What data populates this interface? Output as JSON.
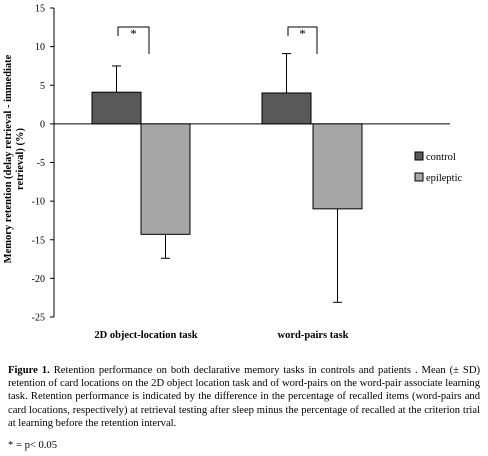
{
  "chart_data": {
    "type": "bar",
    "ylabel": "Memory retention (delay retrieval - immediate retrieval)  (%)",
    "ylim": [
      -25,
      15
    ],
    "yticks": [
      15,
      10,
      5,
      0,
      -5,
      -10,
      -15,
      -20,
      -25
    ],
    "categories": [
      "2D object-location task",
      "word-pairs task"
    ],
    "series": [
      {
        "name": "control",
        "color": "#595959",
        "values": [
          4.1,
          4.0
        ],
        "err": [
          3.4,
          5.1
        ]
      },
      {
        "name": "epileptic",
        "color": "#a6a6a6",
        "values": [
          -14.3,
          -11.0
        ],
        "err": [
          3.1,
          12.1
        ]
      }
    ],
    "error_direction": "away-from-zero",
    "significance": [
      {
        "category_index": 0,
        "label": "*"
      },
      {
        "category_index": 1,
        "label": "*"
      }
    ],
    "legend": "right"
  },
  "caption": {
    "figure_label": "Figure 1.",
    "text": " Retention performance on both declarative memory tasks in controls and patients . Mean (± SD) retention of card locations on the 2D object location task and of word-pairs on the word-pair associate learning task. Retention performance is indicated by the difference in the percentage of recalled items (word-pairs and card locations, respectively) at retrieval testing after sleep minus the percentage of recalled at the criterion trial at learning before the retention interval.",
    "note": "* = p< 0.05"
  }
}
